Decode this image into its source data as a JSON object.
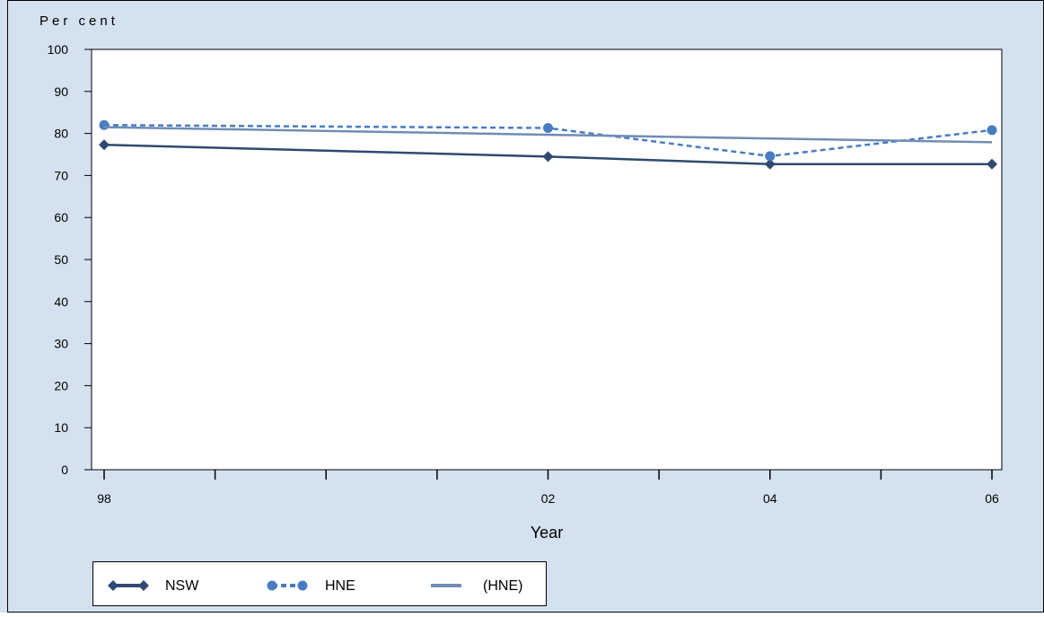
{
  "chart_data": {
    "type": "line",
    "title": "",
    "xlabel": "Year",
    "ylabel": "Per cent",
    "x": [
      1998,
      1999,
      2000,
      2001,
      2002,
      2003,
      2004,
      2005,
      2006
    ],
    "x_tick_labels": [
      {
        "x": 1998,
        "label": "98"
      },
      {
        "x": 2002,
        "label": "02"
      },
      {
        "x": 2004,
        "label": "04"
      },
      {
        "x": 2006,
        "label": "06"
      }
    ],
    "xlim": [
      1998,
      2006
    ],
    "ylim": [
      0,
      100
    ],
    "y_ticks": [
      0,
      10,
      20,
      30,
      40,
      50,
      60,
      70,
      80,
      90,
      100
    ],
    "grid": false,
    "legend_position": "bottom-left",
    "series": [
      {
        "name": "NSW",
        "color": "#2e4a72",
        "line_style": "solid",
        "marker": "diamond",
        "points": [
          {
            "x": 1998,
            "y": 77.3
          },
          {
            "x": 2002,
            "y": 74.5
          },
          {
            "x": 2004,
            "y": 72.7
          },
          {
            "x": 2006,
            "y": 72.7
          }
        ]
      },
      {
        "name": "HNE",
        "color": "#4a7cc3",
        "line_style": "dashed",
        "marker": "circle",
        "points": [
          {
            "x": 1998,
            "y": 82.0
          },
          {
            "x": 2002,
            "y": 81.3
          },
          {
            "x": 2004,
            "y": 74.6
          },
          {
            "x": 2006,
            "y": 80.8
          }
        ]
      },
      {
        "name": "(HNE)",
        "color": "#6f8db5",
        "line_style": "solid",
        "marker": "none",
        "points": [
          {
            "x": 1998,
            "y": 81.5
          },
          {
            "x": 2006,
            "y": 77.9
          }
        ]
      }
    ],
    "colors": {
      "background": "#d4e1ef",
      "plot_background": "#ffffff",
      "axis": "#000000"
    }
  }
}
